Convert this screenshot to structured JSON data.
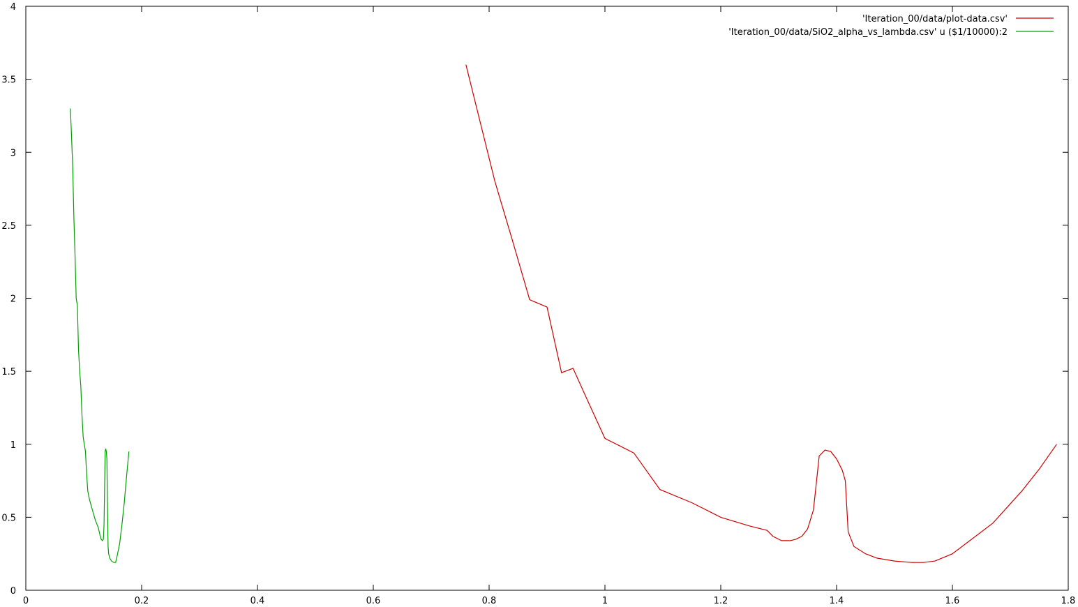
{
  "chart_data": {
    "type": "line",
    "title": "",
    "xlabel": "",
    "ylabel": "",
    "xlim": [
      0,
      1.8
    ],
    "ylim": [
      0,
      4
    ],
    "xticks": [
      "0",
      "0.2",
      "0.4",
      "0.6",
      "0.8",
      "1",
      "1.2",
      "1.4",
      "1.6",
      "1.8"
    ],
    "yticks": [
      "0",
      "0.5",
      "1",
      "1.5",
      "2",
      "2.5",
      "3",
      "3.5",
      "4"
    ],
    "xtick_values": [
      0,
      0.2,
      0.4,
      0.6,
      0.8,
      1.0,
      1.2,
      1.4,
      1.6,
      1.8
    ],
    "ytick_values": [
      0,
      0.5,
      1.0,
      1.5,
      2.0,
      2.5,
      3.0,
      3.5,
      4.0
    ],
    "grid": false,
    "legend_position": "top-right",
    "series": [
      {
        "name": "'Iteration_00/data/plot-data.csv'",
        "color": "#cc0000",
        "x": [
          0.76,
          0.81,
          0.84,
          0.87,
          0.9,
          0.925,
          0.945,
          0.97,
          1.0,
          1.05,
          1.095,
          1.15,
          1.2,
          1.25,
          1.28,
          1.29,
          1.305,
          1.32,
          1.33,
          1.34,
          1.35,
          1.36,
          1.363,
          1.37,
          1.38,
          1.39,
          1.4,
          1.41,
          1.415,
          1.42,
          1.43,
          1.45,
          1.47,
          1.5,
          1.53,
          1.55,
          1.57,
          1.6,
          1.63,
          1.67,
          1.72,
          1.75,
          1.78
        ],
        "y": [
          3.6,
          2.8,
          2.4,
          1.99,
          1.94,
          1.49,
          1.52,
          1.3,
          1.04,
          0.94,
          0.69,
          0.6,
          0.5,
          0.44,
          0.41,
          0.37,
          0.34,
          0.34,
          0.35,
          0.37,
          0.42,
          0.55,
          0.66,
          0.92,
          0.96,
          0.95,
          0.9,
          0.82,
          0.75,
          0.4,
          0.3,
          0.25,
          0.22,
          0.2,
          0.19,
          0.19,
          0.2,
          0.25,
          0.34,
          0.46,
          0.68,
          0.83,
          1.0
        ]
      },
      {
        "name": "'Iteration_00/data/SiO2_alpha_vs_lambda.csv' u ($1/10000):2",
        "color": "#00a000",
        "x": [
          0.077,
          0.079,
          0.081,
          0.083,
          0.085,
          0.087,
          0.089,
          0.091,
          0.093,
          0.095,
          0.097,
          0.099,
          0.101,
          0.103,
          0.105,
          0.107,
          0.11,
          0.115,
          0.12,
          0.125,
          0.128,
          0.13,
          0.132,
          0.134,
          0.135,
          0.136,
          0.137,
          0.138,
          0.139,
          0.14,
          0.141,
          0.142,
          0.143,
          0.145,
          0.148,
          0.152,
          0.155,
          0.158,
          0.162,
          0.166,
          0.17,
          0.174,
          0.178
        ],
        "y": [
          3.3,
          3.1,
          2.9,
          2.55,
          2.3,
          2.0,
          1.95,
          1.65,
          1.5,
          1.4,
          1.2,
          1.05,
          1.0,
          0.95,
          0.8,
          0.68,
          0.62,
          0.55,
          0.48,
          0.43,
          0.38,
          0.35,
          0.34,
          0.35,
          0.45,
          0.7,
          0.95,
          0.97,
          0.95,
          0.9,
          0.6,
          0.3,
          0.25,
          0.22,
          0.2,
          0.19,
          0.19,
          0.24,
          0.32,
          0.45,
          0.6,
          0.78,
          0.95
        ]
      }
    ]
  }
}
